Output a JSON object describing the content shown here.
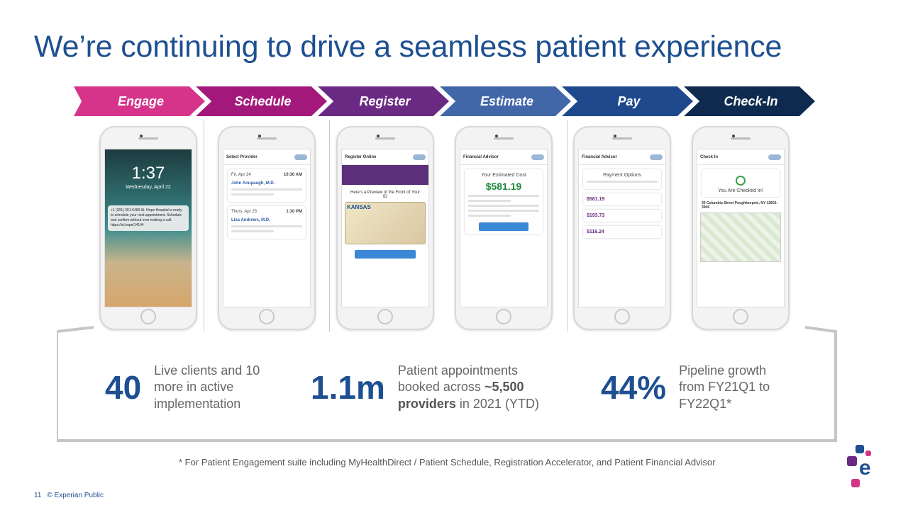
{
  "title": "We’re continuing to drive a seamless patient experience",
  "steps": [
    {
      "label": "Engage",
      "color": "#d6338a"
    },
    {
      "label": "Schedule",
      "color": "#a3197b"
    },
    {
      "label": "Register",
      "color": "#6a2a84"
    },
    {
      "label": "Estimate",
      "color": "#4167a8"
    },
    {
      "label": "Pay",
      "color": "#1e4a8d"
    },
    {
      "label": "Check-In",
      "color": "#0e2a4e"
    }
  ],
  "phones": {
    "engage": {
      "time": "1:37",
      "date": "Wednesday, April 22",
      "msg": "+1 (201) 301-6469 St. Hope Hospital is ready to schedule your next appointment. Schedule and confirm without ever making a call. https://st.hope/14144"
    },
    "schedule": {
      "header": "Select Provider",
      "date1": "Fri, Apr 24",
      "time1": "10:30 AM",
      "doc1": "John Anupaugh, M.D.",
      "date2": "Thurs, Apr 23",
      "time2": "1:30 PM",
      "doc2": "Lisa Andrews, M.D."
    },
    "register": {
      "header": "Register Online",
      "preview": "Here’s a Preview of the Front of Your ID",
      "id_state": "KANSAS"
    },
    "estimate": {
      "header": "Financial Advisor",
      "label": "Your Estimated Cost",
      "amount": "$581.19"
    },
    "pay": {
      "header": "Financial Advisor",
      "label": "Payment Options",
      "amt1": "$581.19",
      "amt2": "$193.73",
      "amt3": "$116.24"
    },
    "checkin": {
      "header": "Check In",
      "label": "You Are Checked In!",
      "address": "30 Columbia Street Poughkeepsie, NY 12601-3906"
    }
  },
  "stats": [
    {
      "number": "40",
      "text": "Live clients and 10 more in active implementation"
    },
    {
      "number": "1.1m",
      "text_a": "Patient appointments booked across ",
      "bold": "~5,500 providers",
      "text_b": " in 2021 (YTD)"
    },
    {
      "number": "44%",
      "text": "Pipeline growth from FY21Q1 to FY22Q1*"
    }
  ],
  "footnote": "* For Patient Engagement suite including MyHealthDirect / Patient Schedule, Registration Accelerator, and Patient Financial Advisor",
  "page_number": "11",
  "classification": "© Experian Public",
  "brand_letter": "e"
}
